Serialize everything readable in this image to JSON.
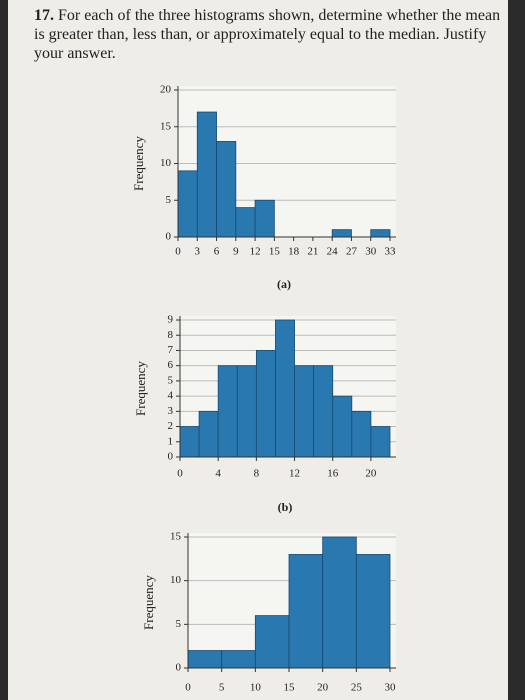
{
  "number": "17.",
  "question": "For each of the three histograms shown, determine whether the mean is greater than, less than, or approximately equal to the median. Justify your answer.",
  "chart_data": [
    {
      "type": "histogram",
      "caption": "(a)",
      "y_label": "Frequency",
      "color": "#2a78b0",
      "bins": [
        0,
        3,
        6,
        9,
        12,
        15,
        18,
        21,
        24,
        27,
        30,
        33
      ],
      "values": [
        9,
        17,
        13,
        4,
        5,
        0,
        0,
        0,
        1,
        0,
        1
      ],
      "xlim": [
        0,
        33
      ],
      "xticks": [
        0,
        3,
        6,
        9,
        12,
        15,
        18,
        21,
        24,
        27,
        30,
        33
      ],
      "ylim": [
        0,
        20
      ],
      "yticks": [
        0,
        5,
        10,
        15,
        20
      ],
      "grid": true
    },
    {
      "type": "histogram",
      "caption": "(b)",
      "y_label": "Frequency",
      "color": "#2a78b0",
      "bins": [
        0,
        2,
        4,
        6,
        8,
        10,
        12,
        14,
        16,
        18,
        20,
        22
      ],
      "values": [
        2,
        3,
        6,
        6,
        7,
        9,
        6,
        6,
        4,
        3,
        2
      ],
      "xlim": [
        0,
        22
      ],
      "xticks": [
        0,
        4,
        8,
        12,
        16,
        20
      ],
      "ylim": [
        0,
        9
      ],
      "yticks": [
        0,
        1,
        2,
        3,
        4,
        5,
        6,
        7,
        8,
        9
      ],
      "grid": true
    },
    {
      "type": "histogram",
      "caption": "",
      "y_label": "Frequency",
      "color": "#2a78b0",
      "bins": [
        0,
        5,
        10,
        15,
        20,
        25,
        30
      ],
      "values": [
        2,
        2,
        6,
        13,
        15,
        13
      ],
      "xlim": [
        0,
        30
      ],
      "xticks": [
        0,
        5,
        10,
        15,
        20,
        25,
        30
      ],
      "ylim": [
        0,
        15
      ],
      "yticks": [
        0,
        5,
        10,
        15
      ],
      "grid": true
    }
  ]
}
